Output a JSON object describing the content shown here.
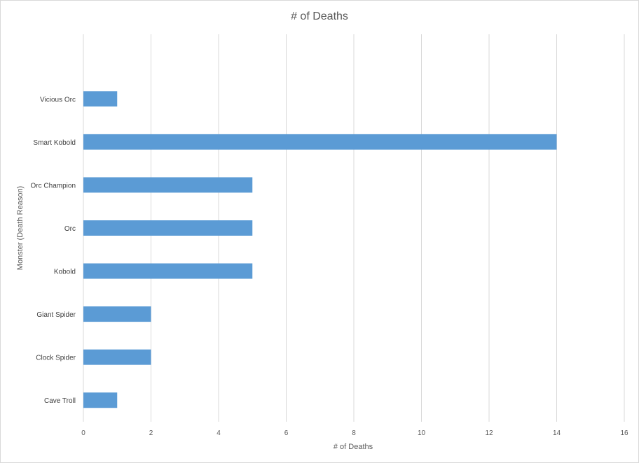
{
  "chart_data": {
    "type": "bar",
    "orientation": "horizontal",
    "title": "# of Deaths",
    "xlabel": "# of Deaths",
    "ylabel": "Monster  (Death Reason)",
    "categories": [
      "Cave Troll",
      "Clock Spider",
      "Giant Spider",
      "Kobold",
      "Orc",
      "Orc Champion",
      "Smart Kobold",
      "Vicious Orc"
    ],
    "values": [
      1,
      2,
      2,
      5,
      5,
      5,
      14,
      1
    ],
    "xlim": [
      0,
      16
    ],
    "xticks": [
      0,
      2,
      4,
      6,
      8,
      10,
      12,
      14,
      16
    ],
    "grid": "vertical",
    "legend": "none",
    "colors": {
      "bar": "#5b9bd5",
      "grid": "#d9d9d9",
      "text": "#595959"
    }
  }
}
